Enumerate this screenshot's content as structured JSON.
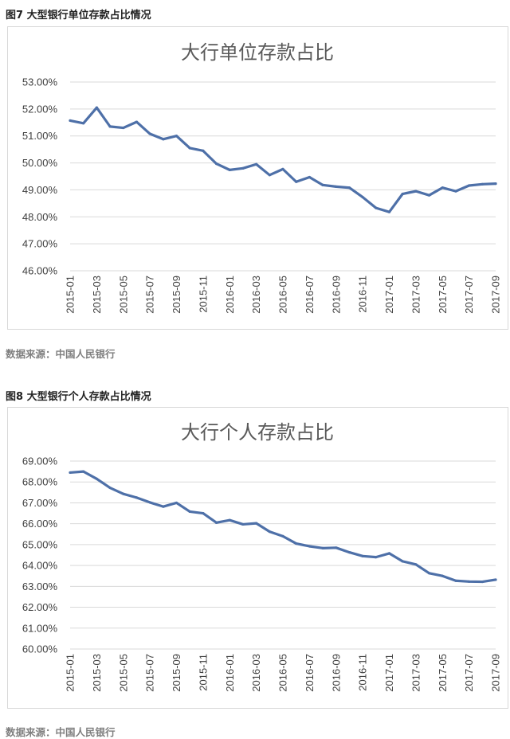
{
  "figure1": {
    "caption": "图7 大型银行单位存款占比情况",
    "source": "数据来源：中国人民银行"
  },
  "figure2": {
    "caption": "图8 大型银行个人存款占比情况",
    "source": "数据来源：中国人民银行"
  },
  "chart_data": [
    {
      "type": "line",
      "title": "大行单位存款占比",
      "xlabel": "",
      "ylabel": "",
      "y_format": "percent",
      "ylim": [
        46,
        53
      ],
      "yticks": [
        46,
        47,
        48,
        49,
        50,
        51,
        52,
        53
      ],
      "ytick_labels": [
        "46.00%",
        "47.00%",
        "48.00%",
        "49.00%",
        "50.00%",
        "51.00%",
        "52.00%",
        "53.00%"
      ],
      "grid": true,
      "legend": "none",
      "color": "#4e70a8",
      "x": [
        "2015-01",
        "2015-02",
        "2015-03",
        "2015-04",
        "2015-05",
        "2015-06",
        "2015-07",
        "2015-08",
        "2015-09",
        "2015-10",
        "2015-11",
        "2015-12",
        "2016-01",
        "2016-02",
        "2016-03",
        "2016-04",
        "2016-05",
        "2016-06",
        "2016-07",
        "2016-08",
        "2016-09",
        "2016-10",
        "2016-11",
        "2016-12",
        "2017-01",
        "2017-02",
        "2017-03",
        "2017-04",
        "2017-05",
        "2017-06",
        "2017-07",
        "2017-08",
        "2017-09"
      ],
      "x_tick_labels": [
        "2015-01",
        "2015-03",
        "2015-05",
        "2015-07",
        "2015-09",
        "2015-11",
        "2016-01",
        "2016-03",
        "2016-05",
        "2016-07",
        "2016-09",
        "2016-11",
        "2017-01",
        "2017-03",
        "2017-05",
        "2017-07",
        "2017-09"
      ],
      "series": [
        {
          "values": [
            51.57,
            51.47,
            52.05,
            51.35,
            51.3,
            51.52,
            51.08,
            50.88,
            51.0,
            50.55,
            50.45,
            49.97,
            49.74,
            49.8,
            49.95,
            49.55,
            49.77,
            49.3,
            49.47,
            49.18,
            49.12,
            49.08,
            48.73,
            48.33,
            48.18,
            48.85,
            48.95,
            48.8,
            49.08,
            48.95,
            49.16,
            49.21,
            49.23
          ]
        }
      ]
    },
    {
      "type": "line",
      "title": "大行个人存款占比",
      "xlabel": "",
      "ylabel": "",
      "y_format": "percent",
      "ylim": [
        60,
        69
      ],
      "yticks": [
        60,
        61,
        62,
        63,
        64,
        65,
        66,
        67,
        68,
        69
      ],
      "ytick_labels": [
        "60.00%",
        "61.00%",
        "62.00%",
        "63.00%",
        "64.00%",
        "65.00%",
        "66.00%",
        "67.00%",
        "68.00%",
        "69.00%"
      ],
      "grid": true,
      "legend": "none",
      "color": "#4e70a8",
      "x": [
        "2015-01",
        "2015-02",
        "2015-03",
        "2015-04",
        "2015-05",
        "2015-06",
        "2015-07",
        "2015-08",
        "2015-09",
        "2015-10",
        "2015-11",
        "2015-12",
        "2016-01",
        "2016-02",
        "2016-03",
        "2016-04",
        "2016-05",
        "2016-06",
        "2016-07",
        "2016-08",
        "2016-09",
        "2016-10",
        "2016-11",
        "2016-12",
        "2017-01",
        "2017-02",
        "2017-03",
        "2017-04",
        "2017-05",
        "2017-06",
        "2017-07",
        "2017-08",
        "2017-09"
      ],
      "x_tick_labels": [
        "2015-01",
        "2015-03",
        "2015-05",
        "2015-07",
        "2015-09",
        "2015-11",
        "2016-01",
        "2016-03",
        "2016-05",
        "2016-07",
        "2016-09",
        "2016-11",
        "2017-01",
        "2017-03",
        "2017-05",
        "2017-07",
        "2017-09"
      ],
      "series": [
        {
          "values": [
            68.45,
            68.5,
            68.15,
            67.72,
            67.43,
            67.25,
            67.02,
            66.82,
            67.0,
            66.58,
            66.5,
            66.05,
            66.17,
            65.97,
            66.02,
            65.62,
            65.4,
            65.05,
            64.92,
            64.83,
            64.85,
            64.63,
            64.45,
            64.4,
            64.58,
            64.2,
            64.05,
            63.63,
            63.5,
            63.27,
            63.23,
            63.22,
            63.32
          ]
        }
      ]
    }
  ]
}
